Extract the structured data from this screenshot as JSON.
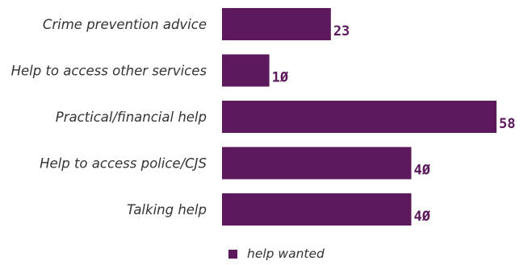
{
  "chart_data": {
    "type": "bar",
    "orientation": "horizontal",
    "categories": [
      "Crime prevention advice",
      "Help to access other services",
      "Practical/financial help",
      "Help to access police/CJS",
      "Talking help"
    ],
    "series": [
      {
        "name": "help wanted",
        "values": [
          23,
          10,
          58,
          40,
          40
        ],
        "color": "#5c1a5c"
      }
    ],
    "value_labels": [
      "23",
      "1Ø",
      "58",
      "4Ø",
      "4Ø"
    ],
    "xlim": [
      0,
      58
    ],
    "grid": false,
    "axes_visible": false,
    "legend": {
      "position": "bottom",
      "label": "help wanted"
    }
  }
}
